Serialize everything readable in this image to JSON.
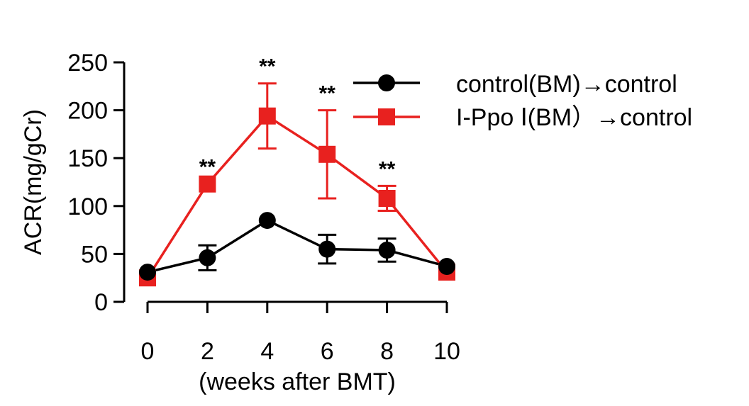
{
  "chart_data": {
    "type": "line",
    "xlabel": "(weeks after BMT)",
    "ylabel": "ACR(mg/gCr)",
    "xlim": [
      0,
      10
    ],
    "ylim": [
      0,
      250
    ],
    "xticks": [
      "0",
      "2",
      "4",
      "6",
      "8",
      "10"
    ],
    "yticks": [
      "0",
      "50",
      "100",
      "150",
      "200",
      "250"
    ],
    "grid": false,
    "legend_position": "top-right",
    "series": [
      {
        "name": "control(BM)→control",
        "color": "#000000",
        "marker": "circle",
        "points": [
          {
            "x": 0,
            "y": 31,
            "err": 0
          },
          {
            "x": 2,
            "y": 46,
            "err": 13
          },
          {
            "x": 4,
            "y": 85,
            "err": 0
          },
          {
            "x": 6,
            "y": 55,
            "err": 15
          },
          {
            "x": 8,
            "y": 54,
            "err": 12
          },
          {
            "x": 10,
            "y": 37,
            "err": 0
          }
        ]
      },
      {
        "name": "I-Ppo Ⅰ(BM）→control",
        "color": "#e8211f",
        "marker": "square",
        "points": [
          {
            "x": 0,
            "y": 25,
            "err": 0
          },
          {
            "x": 2,
            "y": 123,
            "err": 0
          },
          {
            "x": 4,
            "y": 194,
            "err": 34
          },
          {
            "x": 6,
            "y": 154,
            "err": 46
          },
          {
            "x": 8,
            "y": 108,
            "err": 13
          },
          {
            "x": 10,
            "y": 31,
            "err": 0
          }
        ]
      }
    ],
    "annotations": [
      {
        "x": 2,
        "y": 123,
        "text": "**"
      },
      {
        "x": 4,
        "y": 228,
        "text": "**"
      },
      {
        "x": 6,
        "y": 200,
        "text": "**"
      },
      {
        "x": 8,
        "y": 121,
        "text": "**"
      }
    ]
  }
}
